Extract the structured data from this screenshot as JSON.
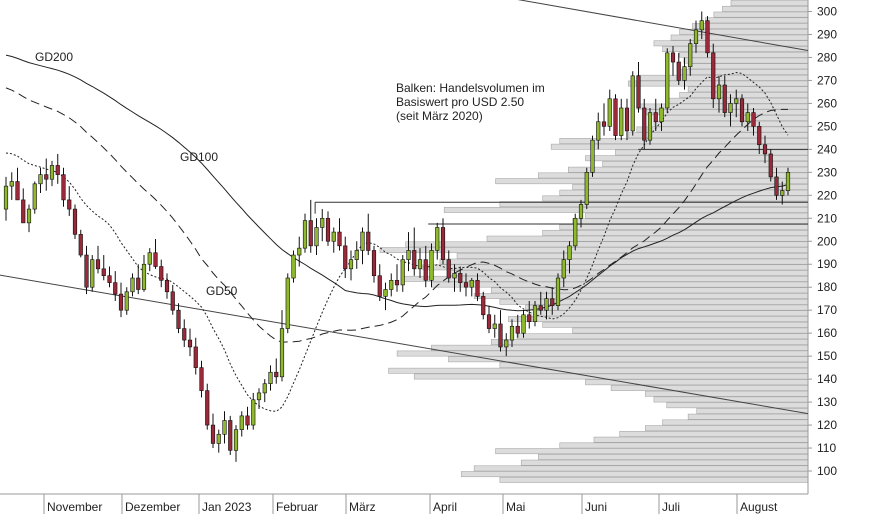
{
  "chart_data": {
    "type": "candlestick",
    "title": "",
    "annotation_lines": [
      "Balken: Handelsvolumen im",
      "Basiswert pro USD 2.50",
      "(seit März 2020)"
    ],
    "y_axis": {
      "side": "right",
      "ylim": [
        90,
        305
      ],
      "ticks": [
        100,
        110,
        120,
        130,
        140,
        150,
        160,
        170,
        180,
        190,
        200,
        210,
        220,
        230,
        240,
        250,
        260,
        270,
        280,
        290,
        300
      ]
    },
    "x_axis": {
      "labels": [
        "November",
        "Dezember",
        "Jan 2023",
        "Februar",
        "März",
        "April",
        "Mai",
        "Juni",
        "Juli",
        "August"
      ]
    },
    "moving_averages": [
      {
        "name": "GD200",
        "style": "solid"
      },
      {
        "name": "GD100",
        "style": "dashed"
      },
      {
        "name": "GD50",
        "style": "dotted"
      }
    ],
    "volume_profile_bin": 2.5,
    "volume_profile": [
      [
        96.25,
        0.72
      ],
      [
        98.75,
        0.81
      ],
      [
        101.25,
        0.78
      ],
      [
        103.75,
        0.67
      ],
      [
        106.25,
        0.63
      ],
      [
        108.75,
        0.73
      ],
      [
        111.25,
        0.58
      ],
      [
        113.75,
        0.5
      ],
      [
        116.25,
        0.44
      ],
      [
        118.75,
        0.38
      ],
      [
        121.25,
        0.34
      ],
      [
        123.75,
        0.28
      ],
      [
        126.25,
        0.26
      ],
      [
        128.75,
        0.33
      ],
      [
        131.25,
        0.36
      ],
      [
        133.75,
        0.38
      ],
      [
        136.25,
        0.46
      ],
      [
        138.75,
        0.52
      ],
      [
        141.25,
        0.92
      ],
      [
        143.75,
        0.98
      ],
      [
        146.25,
        0.72
      ],
      [
        148.75,
        0.84
      ],
      [
        151.25,
        0.96
      ],
      [
        153.75,
        0.88
      ],
      [
        156.25,
        0.74
      ],
      [
        158.75,
        0.68
      ],
      [
        161.25,
        0.55
      ],
      [
        163.75,
        0.62
      ],
      [
        166.25,
        0.7
      ],
      [
        168.75,
        0.64
      ],
      [
        171.25,
        0.66
      ],
      [
        173.75,
        0.72
      ],
      [
        176.25,
        0.78
      ],
      [
        178.75,
        0.74
      ],
      [
        181.25,
        0.88
      ],
      [
        183.75,
        0.95
      ],
      [
        186.25,
        0.84
      ],
      [
        188.75,
        0.9
      ],
      [
        191.25,
        0.86
      ],
      [
        193.75,
        0.82
      ],
      [
        196.25,
        1.0
      ],
      [
        198.75,
        0.94
      ],
      [
        201.25,
        0.75
      ],
      [
        203.75,
        0.62
      ],
      [
        206.25,
        0.58
      ],
      [
        208.75,
        0.55
      ],
      [
        211.25,
        0.52
      ],
      [
        213.75,
        0.85
      ],
      [
        216.25,
        0.72
      ],
      [
        218.75,
        0.62
      ],
      [
        221.25,
        0.58
      ],
      [
        223.75,
        0.55
      ],
      [
        226.25,
        0.73
      ],
      [
        228.75,
        0.63
      ],
      [
        231.25,
        0.56
      ],
      [
        233.75,
        0.48
      ],
      [
        236.25,
        0.52
      ],
      [
        238.75,
        0.45
      ],
      [
        241.25,
        0.6
      ],
      [
        243.75,
        0.58
      ],
      [
        246.25,
        0.42
      ],
      [
        248.75,
        0.4
      ],
      [
        251.25,
        0.36
      ],
      [
        253.75,
        0.34
      ],
      [
        256.25,
        0.38
      ],
      [
        258.75,
        0.4
      ],
      [
        261.25,
        0.33
      ],
      [
        263.75,
        0.3
      ],
      [
        266.25,
        0.28
      ],
      [
        268.75,
        0.42
      ],
      [
        271.25,
        0.4
      ],
      [
        273.75,
        0.3
      ],
      [
        276.25,
        0.28
      ],
      [
        278.75,
        0.29
      ],
      [
        281.25,
        0.3
      ],
      [
        283.75,
        0.34
      ],
      [
        286.25,
        0.36
      ],
      [
        288.75,
        0.32
      ],
      [
        291.25,
        0.3
      ],
      [
        293.75,
        0.27
      ],
      [
        296.25,
        0.24
      ],
      [
        298.75,
        0.22
      ],
      [
        301.25,
        0.2
      ],
      [
        303.75,
        0.18
      ]
    ],
    "horizontal_levels": [
      {
        "y": 217,
        "x_from_pct": 0.39
      },
      {
        "y": 207.5,
        "x_from_pct": 0.53
      },
      {
        "y": 240,
        "x_from_pct": 0.79
      }
    ],
    "trend_lines": [
      {
        "from": [
          -2,
          186
        ],
        "to": [
          100,
          125
        ]
      },
      {
        "from": [
          56,
          310
        ],
        "to": [
          100,
          283
        ]
      }
    ],
    "candles": [
      [
        214,
        228,
        209,
        224
      ],
      [
        224,
        230,
        218,
        226
      ],
      [
        226,
        232,
        219,
        218
      ],
      [
        218,
        223,
        209,
        208
      ],
      [
        208,
        216,
        204,
        214
      ],
      [
        214,
        226,
        212,
        225
      ],
      [
        225,
        232,
        221,
        229
      ],
      [
        229,
        236,
        222,
        227
      ],
      [
        227,
        235,
        224,
        233
      ],
      [
        233,
        238,
        225,
        229
      ],
      [
        229,
        232,
        215,
        218
      ],
      [
        218,
        224,
        211,
        214
      ],
      [
        214,
        216,
        201,
        203
      ],
      [
        203,
        205,
        193,
        194
      ],
      [
        194,
        198,
        177,
        180
      ],
      [
        180,
        194,
        178,
        192
      ],
      [
        192,
        198,
        186,
        188
      ],
      [
        188,
        194,
        183,
        185
      ],
      [
        185,
        189,
        180,
        182
      ],
      [
        182,
        187,
        174,
        177
      ],
      [
        177,
        182,
        167,
        170
      ],
      [
        170,
        180,
        168,
        178
      ],
      [
        178,
        186,
        176,
        184
      ],
      [
        184,
        190,
        177,
        179
      ],
      [
        179,
        194,
        178,
        190
      ],
      [
        190,
        197,
        187,
        195
      ],
      [
        195,
        201,
        188,
        189
      ],
      [
        189,
        192,
        180,
        183
      ],
      [
        183,
        186,
        175,
        178
      ],
      [
        178,
        181,
        168,
        170
      ],
      [
        170,
        173,
        160,
        162
      ],
      [
        162,
        166,
        154,
        157
      ],
      [
        157,
        162,
        150,
        154
      ],
      [
        154,
        158,
        142,
        145
      ],
      [
        145,
        148,
        132,
        135
      ],
      [
        135,
        138,
        118,
        120
      ],
      [
        120,
        125,
        110,
        112
      ],
      [
        112,
        118,
        108,
        116
      ],
      [
        116,
        126,
        112,
        122
      ],
      [
        122,
        124,
        107,
        109
      ],
      [
        109,
        120,
        104,
        118
      ],
      [
        118,
        126,
        115,
        124
      ],
      [
        124,
        128,
        118,
        120
      ],
      [
        120,
        134,
        118,
        131
      ],
      [
        131,
        136,
        127,
        134
      ],
      [
        134,
        140,
        130,
        138
      ],
      [
        138,
        146,
        135,
        143
      ],
      [
        143,
        149,
        138,
        141
      ],
      [
        141,
        170,
        139,
        162
      ],
      [
        162,
        186,
        160,
        184
      ],
      [
        184,
        196,
        182,
        194
      ],
      [
        194,
        202,
        189,
        197
      ],
      [
        197,
        212,
        195,
        209
      ],
      [
        209,
        218,
        195,
        198
      ],
      [
        198,
        210,
        194,
        206
      ],
      [
        206,
        214,
        200,
        210
      ],
      [
        210,
        213,
        198,
        200
      ],
      [
        200,
        206,
        195,
        204
      ],
      [
        204,
        210,
        196,
        198
      ],
      [
        198,
        202,
        184,
        188
      ],
      [
        188,
        196,
        183,
        192
      ],
      [
        192,
        200,
        188,
        196
      ],
      [
        196,
        206,
        190,
        204
      ],
      [
        204,
        212,
        194,
        196
      ],
      [
        196,
        198,
        182,
        185
      ],
      [
        185,
        190,
        174,
        176
      ],
      [
        176,
        182,
        170,
        179
      ],
      [
        179,
        186,
        176,
        183
      ],
      [
        183,
        190,
        178,
        181
      ],
      [
        181,
        194,
        178,
        192
      ],
      [
        192,
        204,
        187,
        196
      ],
      [
        196,
        206,
        185,
        188
      ],
      [
        188,
        197,
        184,
        192
      ],
      [
        192,
        198,
        180,
        183
      ],
      [
        183,
        199,
        180,
        196
      ],
      [
        196,
        208,
        192,
        206
      ],
      [
        206,
        210,
        190,
        192
      ],
      [
        192,
        196,
        182,
        184
      ],
      [
        184,
        190,
        178,
        186
      ],
      [
        186,
        189,
        178,
        182
      ],
      [
        182,
        186,
        176,
        180
      ],
      [
        180,
        184,
        176,
        183
      ],
      [
        183,
        186,
        174,
        176
      ],
      [
        176,
        178,
        166,
        168
      ],
      [
        168,
        172,
        160,
        162
      ],
      [
        162,
        168,
        158,
        164
      ],
      [
        164,
        170,
        152,
        154
      ],
      [
        154,
        160,
        150,
        157
      ],
      [
        157,
        166,
        154,
        163
      ],
      [
        163,
        168,
        158,
        160
      ],
      [
        160,
        170,
        158,
        168
      ],
      [
        168,
        174,
        162,
        165
      ],
      [
        165,
        174,
        163,
        172
      ],
      [
        172,
        178,
        168,
        170
      ],
      [
        170,
        178,
        166,
        175
      ],
      [
        175,
        180,
        168,
        172
      ],
      [
        172,
        186,
        170,
        184
      ],
      [
        184,
        196,
        180,
        192
      ],
      [
        192,
        200,
        186,
        198
      ],
      [
        198,
        212,
        196,
        210
      ],
      [
        210,
        218,
        206,
        216
      ],
      [
        216,
        232,
        214,
        230
      ],
      [
        230,
        246,
        228,
        244
      ],
      [
        244,
        256,
        240,
        252
      ],
      [
        252,
        260,
        246,
        250
      ],
      [
        250,
        266,
        248,
        262
      ],
      [
        262,
        264,
        244,
        246
      ],
      [
        246,
        262,
        244,
        258
      ],
      [
        258,
        262,
        244,
        248
      ],
      [
        248,
        274,
        246,
        272
      ],
      [
        272,
        278,
        256,
        258
      ],
      [
        258,
        262,
        240,
        244
      ],
      [
        244,
        258,
        242,
        256
      ],
      [
        256,
        262,
        248,
        252
      ],
      [
        252,
        260,
        248,
        258
      ],
      [
        258,
        284,
        256,
        282
      ],
      [
        282,
        285,
        272,
        278
      ],
      [
        278,
        282,
        268,
        270
      ],
      [
        270,
        280,
        266,
        276
      ],
      [
        276,
        288,
        272,
        286
      ],
      [
        286,
        296,
        282,
        292
      ],
      [
        292,
        300,
        288,
        296
      ],
      [
        296,
        298,
        280,
        282
      ],
      [
        282,
        286,
        258,
        262
      ],
      [
        262,
        272,
        256,
        268
      ],
      [
        268,
        272,
        254,
        256
      ],
      [
        256,
        264,
        250,
        260
      ],
      [
        260,
        266,
        254,
        262
      ],
      [
        262,
        264,
        250,
        252
      ],
      [
        252,
        260,
        248,
        256
      ],
      [
        256,
        258,
        246,
        250
      ],
      [
        250,
        252,
        238,
        242
      ],
      [
        242,
        246,
        234,
        238
      ],
      [
        238,
        240,
        226,
        228
      ],
      [
        228,
        232,
        218,
        220
      ],
      [
        220,
        226,
        216,
        222
      ],
      [
        222,
        232,
        220,
        230
      ]
    ]
  }
}
